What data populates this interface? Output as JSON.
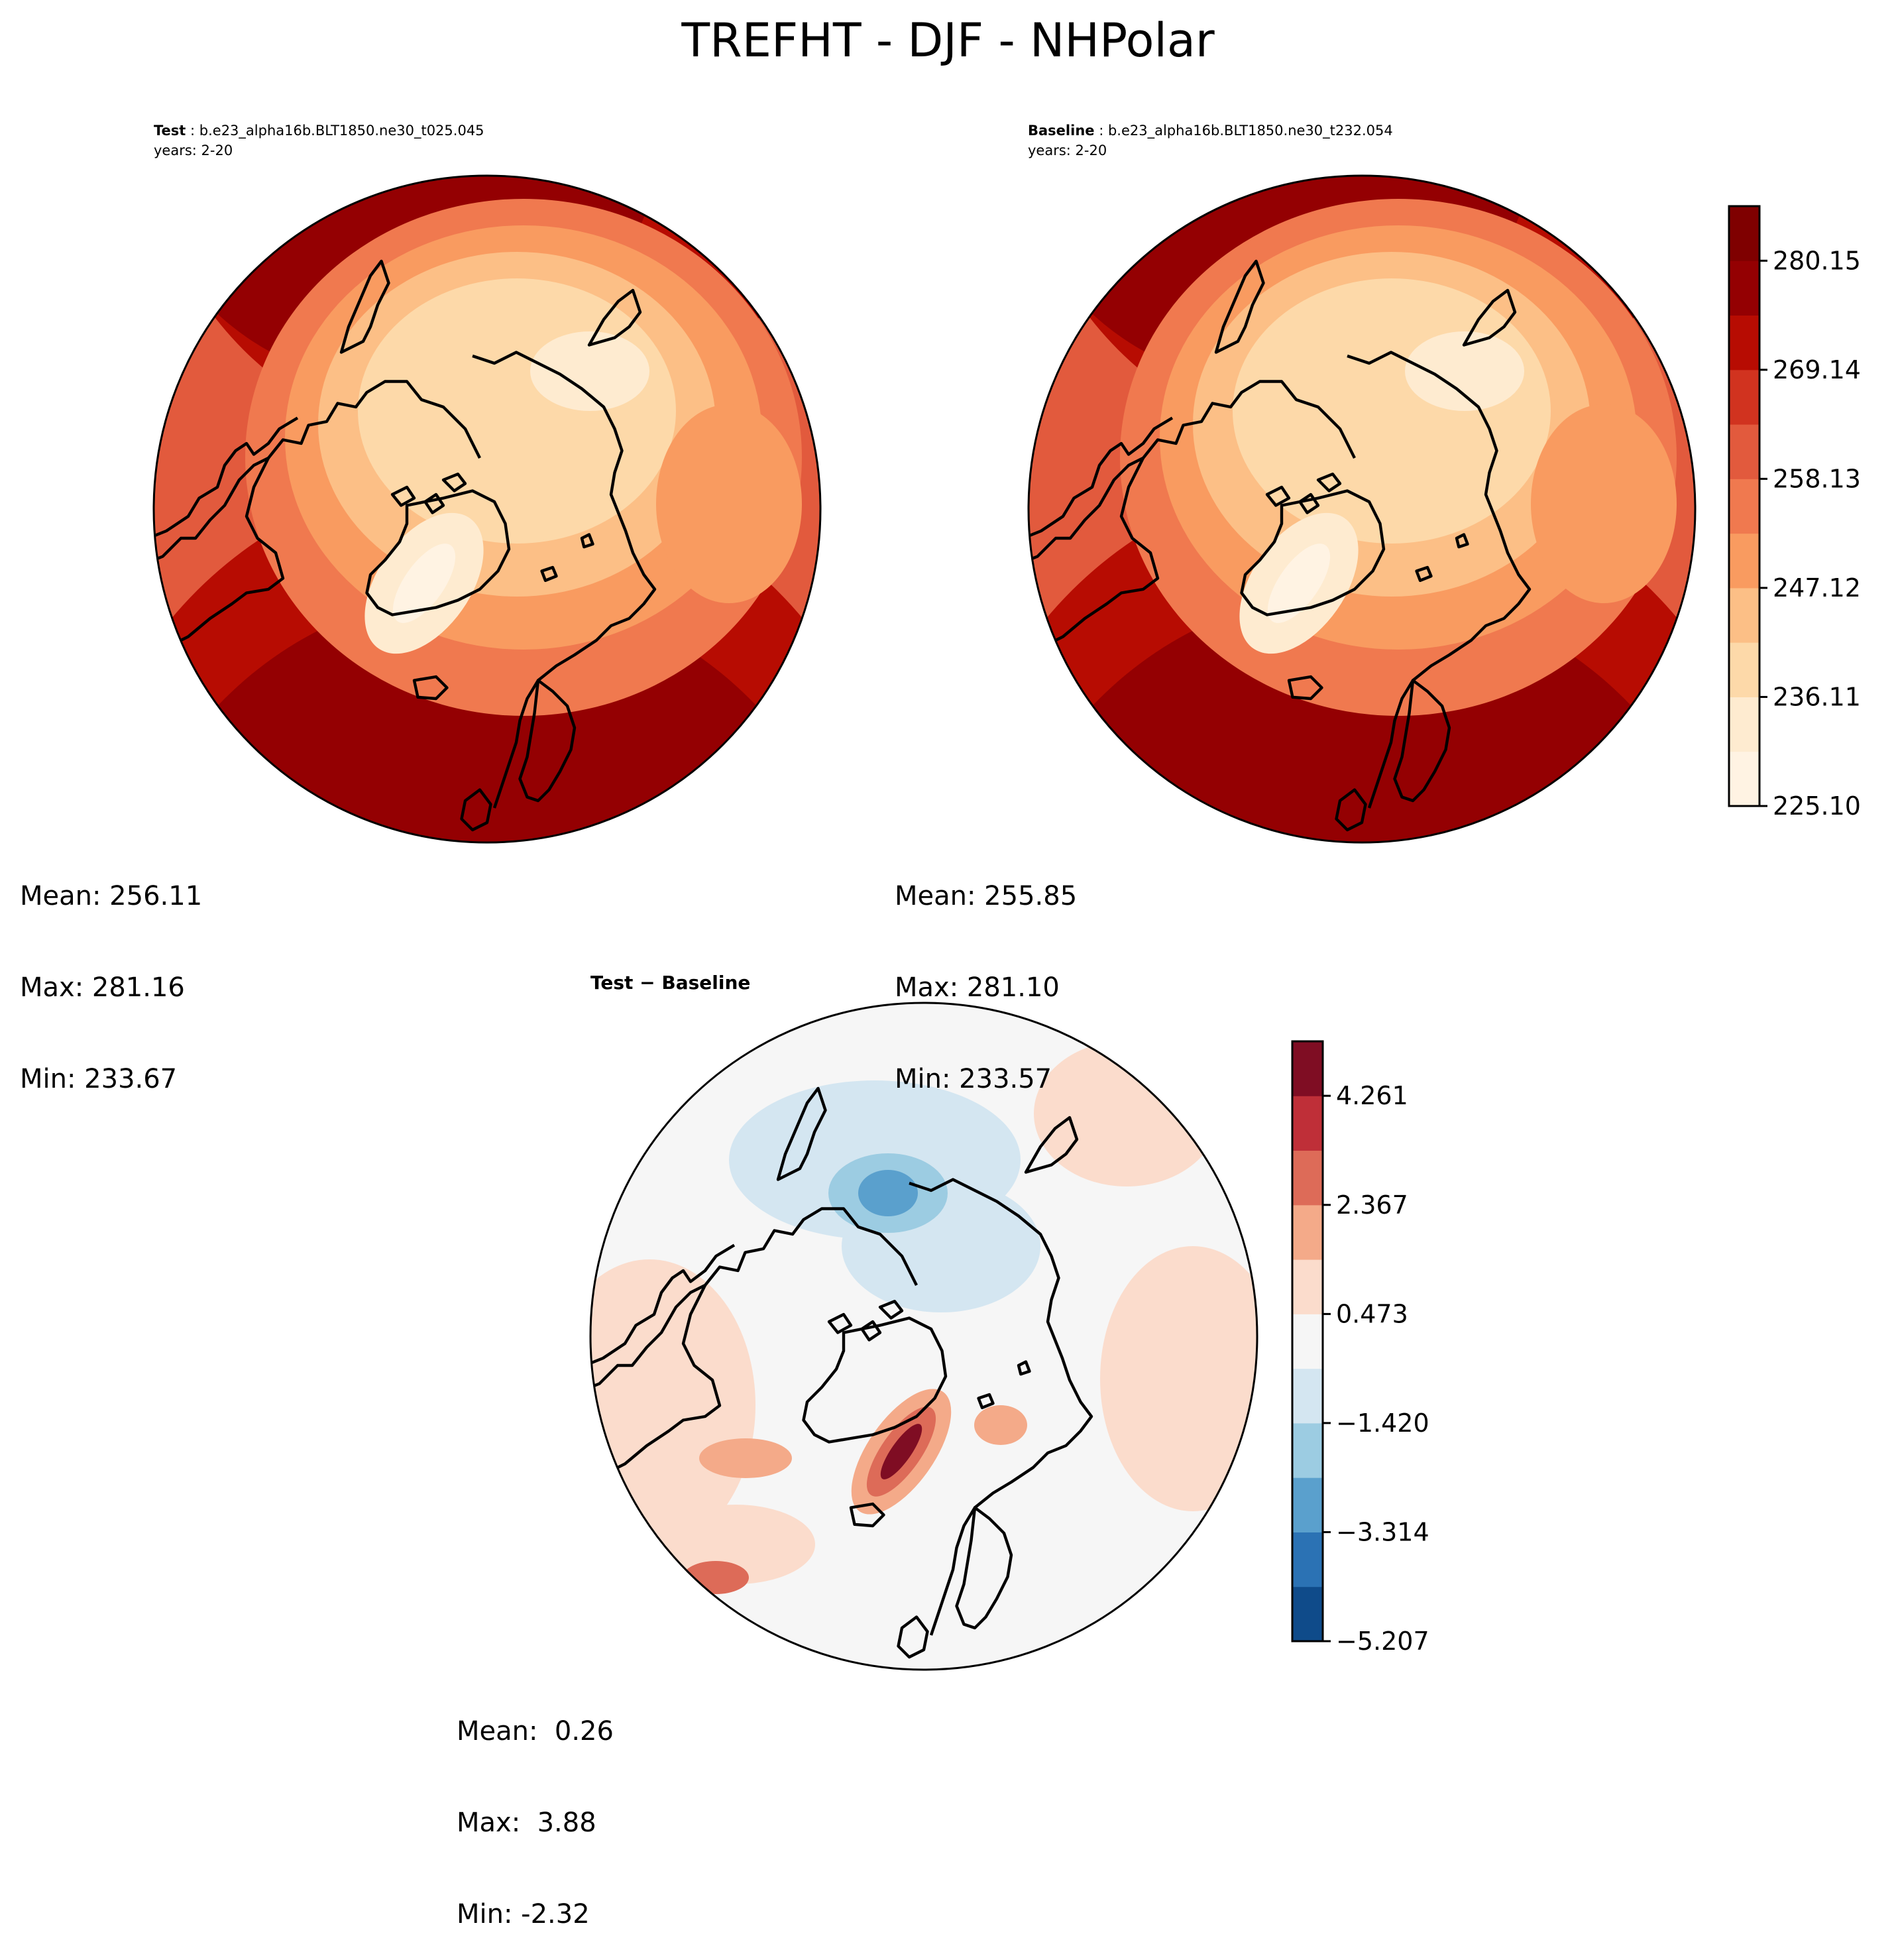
{
  "figure": {
    "title": "TREFHT - DJF - NHPolar"
  },
  "panels": {
    "test": {
      "label": "Test",
      "case": "b.e23_alpha16b.BLT1850.ne30_t025.045",
      "years": "years: 2-20",
      "stats": [
        "Mean: 256.11",
        "Max: 281.16",
        "Min: 233.67"
      ]
    },
    "baseline": {
      "label": "Baseline",
      "case": "b.e23_alpha16b.BLT1850.ne30_t232.054",
      "years": "years: 2-20",
      "stats": [
        "Mean: 255.85",
        "Max: 281.10",
        "Min: 233.57"
      ]
    },
    "diff": {
      "label": "Test − Baseline",
      "stats": [
        "Mean:  0.26",
        "Max:  3.88",
        "Min: -2.32"
      ]
    }
  },
  "chart_data": [
    {
      "type": "heatmap",
      "projection": "north-polar-stereographic",
      "title": "Test",
      "colormap": "OrRd-like (cream to dark red)",
      "levels": [
        225.1,
        230.61,
        236.11,
        241.62,
        247.12,
        252.62,
        258.13,
        263.64,
        269.14,
        274.64,
        280.15,
        285.66
      ],
      "colorbar_ticks": [
        "280.15",
        "269.14",
        "258.13",
        "247.12",
        "236.11",
        "225.10"
      ],
      "colors": [
        "#fff3e3",
        "#feebd0",
        "#fdd9a9",
        "#fcbf86",
        "#f99b60",
        "#f0794f",
        "#e25a3d",
        "#d1331f",
        "#b70c02",
        "#940002",
        "#7f0000"
      ],
      "mean": 256.11,
      "max": 281.16,
      "min": 233.67
    },
    {
      "type": "heatmap",
      "projection": "north-polar-stereographic",
      "title": "Baseline",
      "colormap": "OrRd-like (cream to dark red)",
      "levels": [
        225.1,
        230.61,
        236.11,
        241.62,
        247.12,
        252.62,
        258.13,
        263.64,
        269.14,
        274.64,
        280.15,
        285.66
      ],
      "colorbar_ticks": [
        "280.15",
        "269.14",
        "258.13",
        "247.12",
        "236.11",
        "225.10"
      ],
      "colors": [
        "#fff3e3",
        "#feebd0",
        "#fdd9a9",
        "#fcbf86",
        "#f99b60",
        "#f0794f",
        "#e25a3d",
        "#d1331f",
        "#b70c02",
        "#940002",
        "#7f0000"
      ],
      "mean": 255.85,
      "max": 281.1,
      "min": 233.57
    },
    {
      "type": "heatmap",
      "projection": "north-polar-stereographic",
      "title": "Test − Baseline",
      "colormap": "RdBu_r",
      "levels": [
        -5.207,
        -4.261,
        -3.314,
        -2.367,
        -1.42,
        -0.473,
        0.473,
        1.42,
        2.367,
        3.314,
        4.261,
        5.207
      ],
      "colorbar_ticks": [
        "4.261",
        "2.367",
        "0.473",
        "−1.420",
        "−3.314",
        "−5.207"
      ],
      "colors": [
        "#0f4b8a",
        "#2b72b4",
        "#5aa0cd",
        "#9ccce2",
        "#d4e6f1",
        "#f6f6f6",
        "#fbdccc",
        "#f4aa89",
        "#dd6b58",
        "#bf2f38",
        "#7f0d23"
      ],
      "mean": 0.26,
      "max": 3.88,
      "min": -2.32
    }
  ]
}
